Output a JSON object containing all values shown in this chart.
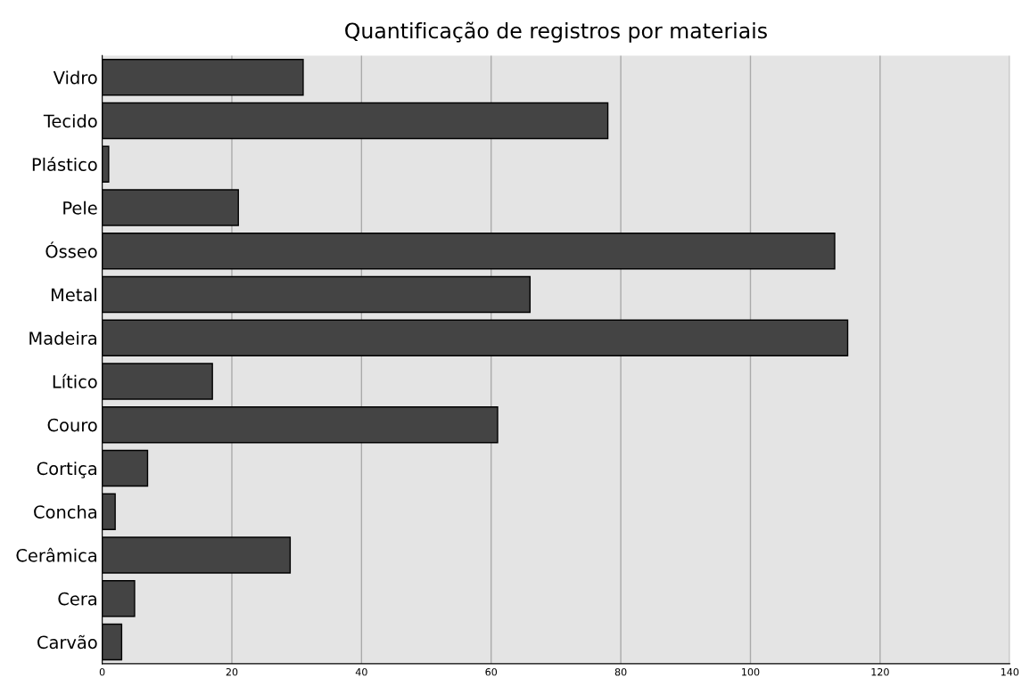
{
  "chart_data": {
    "type": "bar",
    "orientation": "horizontal",
    "title": "Quantificação de registros por materiais",
    "categories": [
      "Vidro",
      "Tecido",
      "Plástico",
      "Pele",
      "Ósseo",
      "Metal",
      "Madeira",
      "Lítico",
      "Couro",
      "Cortiça",
      "Concha",
      "Cerâmica",
      "Cera",
      "Carvão"
    ],
    "values": [
      31,
      78,
      1,
      21,
      113,
      66,
      115,
      17,
      61,
      7,
      2,
      29,
      5,
      3
    ],
    "color": "#444444",
    "xlim": [
      0,
      140
    ],
    "xticks": [
      0,
      20,
      40,
      60,
      80,
      100,
      120,
      140
    ],
    "grid": "x"
  }
}
